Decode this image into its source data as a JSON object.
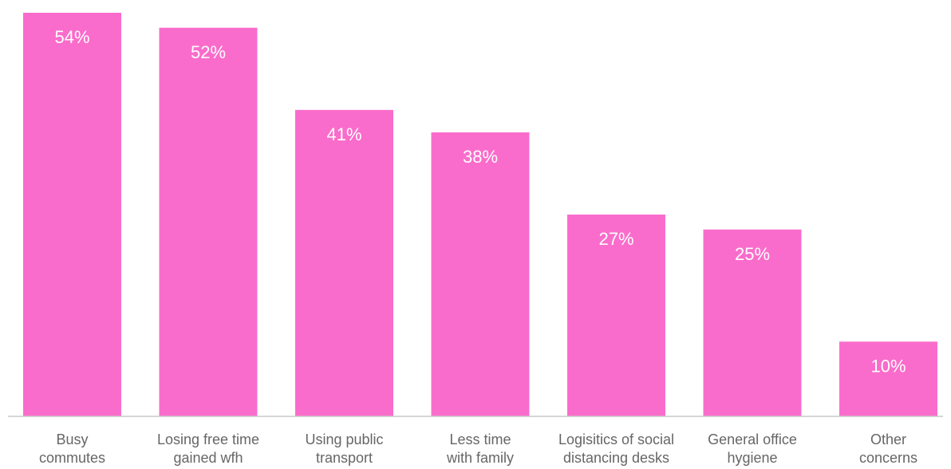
{
  "chart_data": {
    "type": "bar",
    "title": "",
    "xlabel": "",
    "ylabel": "",
    "categories": [
      [
        "Busy",
        "commutes"
      ],
      [
        "Losing free time",
        "gained wfh"
      ],
      [
        "Using public",
        "transport"
      ],
      [
        "Less time",
        "with family"
      ],
      [
        "Logisitics of social",
        "distancing desks"
      ],
      [
        "General office",
        "hygiene"
      ],
      [
        "Other",
        "concerns"
      ]
    ],
    "values": [
      54,
      52,
      41,
      38,
      27,
      25,
      10
    ],
    "value_labels": [
      "54%",
      "52%",
      "41%",
      "38%",
      "27%",
      "25%",
      "10%"
    ],
    "ylim": [
      0,
      55
    ],
    "grid": false,
    "legend": "none",
    "colors": {
      "bar": "#fa6ccb",
      "baseline": "#c9c9c9",
      "value_text": "#ffffff",
      "category_text": "#666666"
    }
  }
}
